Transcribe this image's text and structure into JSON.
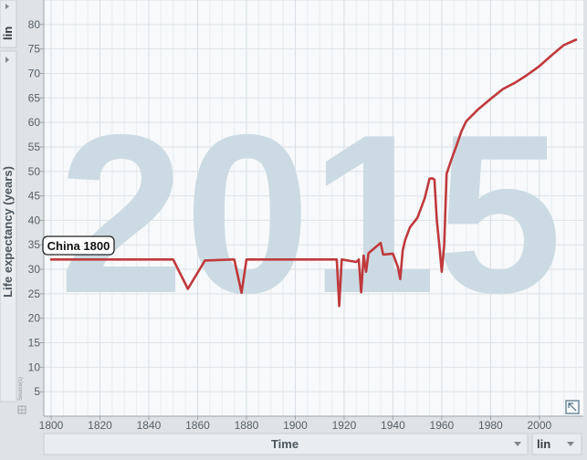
{
  "chart_data": {
    "type": "line",
    "title": "",
    "watermark_year": "2015",
    "xlabel": "Time",
    "ylabel": "Life expectancy (years)",
    "xlim": [
      1797,
      2018
    ],
    "ylim": [
      0,
      85
    ],
    "x_ticks": [
      1800,
      1820,
      1840,
      1860,
      1880,
      1900,
      1920,
      1940,
      1960,
      1980,
      2000
    ],
    "y_ticks": [
      5,
      10,
      15,
      20,
      25,
      30,
      35,
      40,
      45,
      50,
      55,
      60,
      65,
      70,
      75,
      80
    ],
    "x_scale": "lin",
    "y_scale": "lin",
    "grid": true,
    "series": [
      {
        "name": "China",
        "color": "#c0393c",
        "x": [
          1800,
          1850,
          1856,
          1863,
          1875,
          1878,
          1880,
          1900,
          1917,
          1918,
          1919,
          1925,
          1926,
          1927,
          1928,
          1929,
          1930,
          1935,
          1936,
          1938,
          1940,
          1942,
          1943,
          1944,
          1945,
          1947,
          1950,
          1953,
          1955,
          1956,
          1957,
          1958,
          1959,
          1960,
          1961,
          1962,
          1964,
          1966,
          1968,
          1970,
          1975,
          1980,
          1985,
          1990,
          1995,
          2000,
          2005,
          2010,
          2015
        ],
        "y": [
          32,
          32,
          26,
          31.8,
          32,
          25.2,
          32,
          32,
          32,
          22.5,
          32,
          31.5,
          32,
          25.3,
          32.8,
          29.5,
          33.3,
          35.4,
          33,
          33.1,
          33.2,
          30.5,
          28,
          33.8,
          36,
          38.6,
          40.5,
          44.5,
          48.5,
          48.6,
          48.3,
          40,
          35,
          29.5,
          35,
          49.5,
          52.5,
          55.2,
          58.1,
          60.2,
          62.7,
          64.8,
          66.8,
          68.1,
          69.7,
          71.5,
          73.7,
          75.8,
          76.9
        ]
      }
    ],
    "tooltip": "China 1800"
  },
  "controls": {
    "y_scale_label": "lin",
    "x_scale_label": "lin",
    "x_axis_selector_label": "Time",
    "sources_label": "Source(s)"
  },
  "colors": {
    "plot_background": "#f7f9fb",
    "grid": "#dde3e7",
    "panel": "#dfe3e6",
    "line": "#c0393c",
    "watermark": "#ccdbe3"
  }
}
